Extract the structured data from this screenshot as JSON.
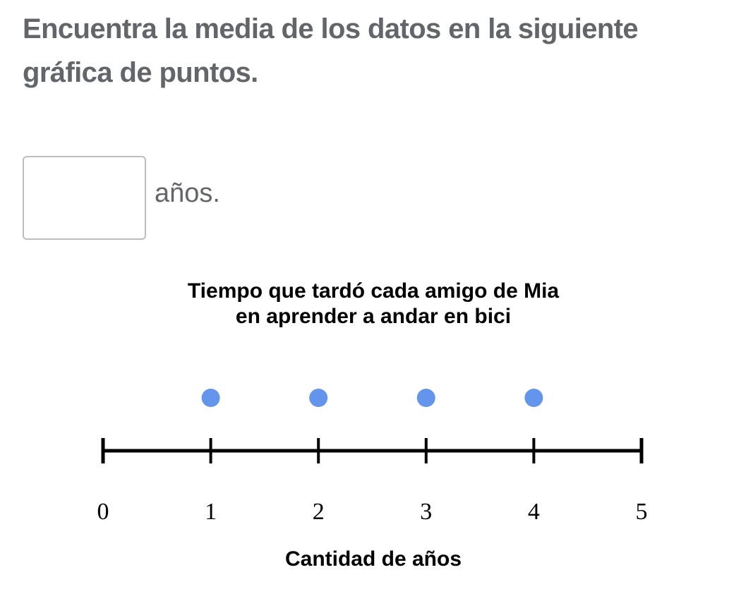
{
  "question": {
    "text": "Encuentra la media de los datos en la siguiente gráfica de puntos."
  },
  "answer": {
    "value": "",
    "unit": "años."
  },
  "chart_data": {
    "type": "scatter",
    "title_lines": [
      "Tiempo que tardó cada amigo de Mia",
      "en aprender a andar en bici"
    ],
    "xlabel": "Cantidad de años",
    "ylabel": "",
    "xlim": [
      0,
      5
    ],
    "ticks": [
      0,
      1,
      2,
      3,
      4,
      5
    ],
    "tick_labels": [
      "0",
      "1",
      "2",
      "3",
      "4",
      "5"
    ],
    "points": [
      {
        "x": 1,
        "count": 1
      },
      {
        "x": 2,
        "count": 1
      },
      {
        "x": 3,
        "count": 1
      },
      {
        "x": 4,
        "count": 1
      }
    ],
    "dot_color": "#6495ed",
    "grid": false
  }
}
